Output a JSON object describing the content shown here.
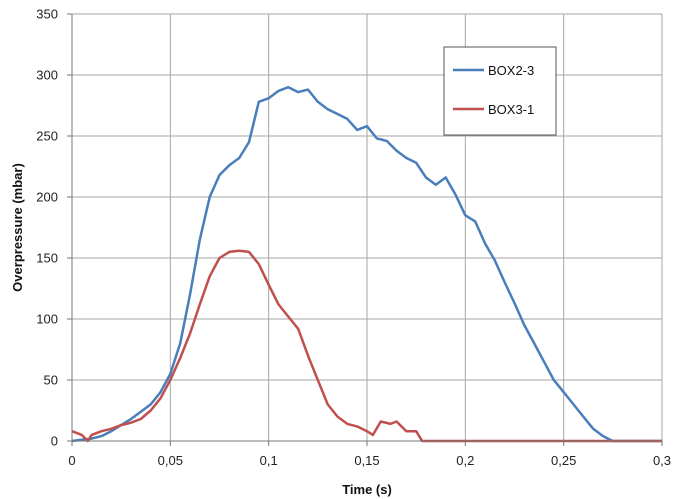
{
  "chart_data": {
    "type": "line",
    "title": "",
    "xlabel": "Time (s)",
    "ylabel": "Overpressure (mbar)",
    "xlim": [
      0,
      0.3
    ],
    "ylim": [
      0,
      350
    ],
    "x_ticks": [
      0,
      0.05,
      0.1,
      0.15,
      0.2,
      0.25,
      0.3
    ],
    "x_tick_labels": [
      "0",
      "0,05",
      "0,1",
      "0,15",
      "0,2",
      "0,25",
      "0,3"
    ],
    "y_ticks": [
      0,
      50,
      100,
      150,
      200,
      250,
      300,
      350
    ],
    "y_tick_labels": [
      "0",
      "50",
      "100",
      "150",
      "200",
      "250",
      "300",
      "350"
    ],
    "grid": true,
    "legend_position": "top-right",
    "series": [
      {
        "name": "BOX2-3",
        "color": "#4a7ebb",
        "points": [
          [
            0.0,
            0
          ],
          [
            0.005,
            1
          ],
          [
            0.01,
            2
          ],
          [
            0.015,
            4
          ],
          [
            0.02,
            8
          ],
          [
            0.025,
            13
          ],
          [
            0.03,
            18
          ],
          [
            0.035,
            24
          ],
          [
            0.04,
            30
          ],
          [
            0.045,
            40
          ],
          [
            0.05,
            55
          ],
          [
            0.055,
            80
          ],
          [
            0.06,
            120
          ],
          [
            0.065,
            165
          ],
          [
            0.07,
            200
          ],
          [
            0.075,
            218
          ],
          [
            0.08,
            226
          ],
          [
            0.085,
            232
          ],
          [
            0.09,
            245
          ],
          [
            0.095,
            278
          ],
          [
            0.1,
            281
          ],
          [
            0.105,
            287
          ],
          [
            0.11,
            290
          ],
          [
            0.115,
            286
          ],
          [
            0.12,
            288
          ],
          [
            0.125,
            278
          ],
          [
            0.13,
            272
          ],
          [
            0.135,
            268
          ],
          [
            0.14,
            264
          ],
          [
            0.145,
            255
          ],
          [
            0.15,
            258
          ],
          [
            0.155,
            248
          ],
          [
            0.16,
            246
          ],
          [
            0.165,
            238
          ],
          [
            0.17,
            232
          ],
          [
            0.175,
            228
          ],
          [
            0.18,
            216
          ],
          [
            0.185,
            210
          ],
          [
            0.19,
            216
          ],
          [
            0.195,
            202
          ],
          [
            0.2,
            185
          ],
          [
            0.205,
            180
          ],
          [
            0.21,
            162
          ],
          [
            0.215,
            148
          ],
          [
            0.22,
            130
          ],
          [
            0.225,
            113
          ],
          [
            0.23,
            95
          ],
          [
            0.235,
            80
          ],
          [
            0.24,
            65
          ],
          [
            0.245,
            50
          ],
          [
            0.25,
            40
          ],
          [
            0.255,
            30
          ],
          [
            0.26,
            20
          ],
          [
            0.265,
            10
          ],
          [
            0.27,
            4
          ],
          [
            0.275,
            0
          ],
          [
            0.3,
            0
          ]
        ]
      },
      {
        "name": "BOX3-1",
        "color": "#c0504d",
        "points": [
          [
            0.0,
            8
          ],
          [
            0.005,
            5
          ],
          [
            0.008,
            0
          ],
          [
            0.01,
            5
          ],
          [
            0.015,
            8
          ],
          [
            0.02,
            10
          ],
          [
            0.025,
            13
          ],
          [
            0.03,
            15
          ],
          [
            0.035,
            18
          ],
          [
            0.04,
            25
          ],
          [
            0.045,
            35
          ],
          [
            0.05,
            50
          ],
          [
            0.055,
            68
          ],
          [
            0.06,
            88
          ],
          [
            0.065,
            112
          ],
          [
            0.07,
            135
          ],
          [
            0.075,
            150
          ],
          [
            0.08,
            155
          ],
          [
            0.085,
            156
          ],
          [
            0.09,
            155
          ],
          [
            0.095,
            145
          ],
          [
            0.1,
            128
          ],
          [
            0.105,
            112
          ],
          [
            0.11,
            102
          ],
          [
            0.115,
            92
          ],
          [
            0.12,
            70
          ],
          [
            0.125,
            50
          ],
          [
            0.13,
            30
          ],
          [
            0.135,
            20
          ],
          [
            0.14,
            14
          ],
          [
            0.145,
            12
          ],
          [
            0.15,
            8
          ],
          [
            0.153,
            5
          ],
          [
            0.157,
            16
          ],
          [
            0.162,
            14
          ],
          [
            0.165,
            16
          ],
          [
            0.17,
            8
          ],
          [
            0.175,
            8
          ],
          [
            0.178,
            0
          ],
          [
            0.3,
            0
          ]
        ]
      }
    ]
  }
}
